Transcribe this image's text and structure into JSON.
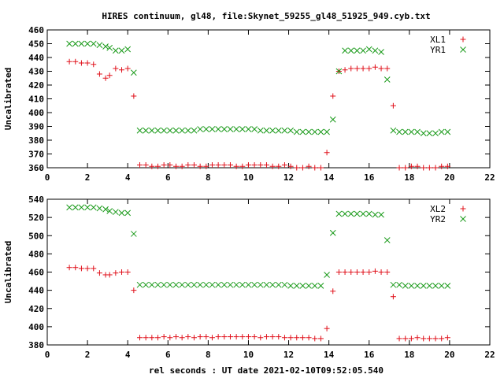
{
  "title": "HIRES continuum, gl48, file:Skynet_59255_gl48_51925_949.cyb.txt",
  "xlabel": "rel seconds : UT date 2021-02-10T09:52:05.540",
  "colors": {
    "red": "#e0101a",
    "green": "#1a9a1a"
  },
  "chart_data": [
    {
      "type": "scatter",
      "ylabel": "Uncalibrated",
      "xlim": [
        0,
        22
      ],
      "ylim": [
        360,
        460
      ],
      "xticks": [
        "0",
        "2",
        "4",
        "6",
        "8",
        "10",
        "12",
        "14",
        "16",
        "18",
        "20",
        "22"
      ],
      "yticks": [
        "360",
        "370",
        "380",
        "390",
        "400",
        "410",
        "420",
        "430",
        "440",
        "450",
        "460"
      ],
      "legend_position": "top-right",
      "series": [
        {
          "name": "XL1",
          "marker": "plus",
          "color": "#e0101a",
          "x": [
            1.1,
            1.4,
            1.7,
            2.0,
            2.3,
            2.6,
            2.9,
            3.1,
            3.4,
            3.7,
            4.0,
            4.3,
            4.6,
            4.9,
            5.2,
            5.5,
            5.8,
            6.1,
            6.4,
            6.7,
            7.0,
            7.3,
            7.6,
            7.9,
            8.2,
            8.5,
            8.8,
            9.1,
            9.4,
            9.7,
            10.0,
            10.3,
            10.6,
            10.9,
            11.2,
            11.5,
            11.8,
            12.1,
            12.4,
            12.7,
            13.0,
            13.3,
            13.6,
            13.9,
            14.2,
            14.5,
            14.8,
            15.1,
            15.4,
            15.7,
            16.0,
            16.3,
            16.6,
            16.9,
            17.2,
            17.5,
            17.8,
            18.1,
            18.4,
            18.7,
            19.0,
            19.3,
            19.6,
            19.9
          ],
          "y": [
            437,
            437,
            436,
            436,
            435,
            428,
            425,
            427,
            432,
            431,
            432,
            412,
            362,
            362,
            361,
            361,
            362,
            362,
            361,
            361,
            362,
            362,
            361,
            361,
            362,
            362,
            362,
            362,
            361,
            361,
            362,
            362,
            362,
            362,
            361,
            361,
            362,
            361,
            360,
            360,
            361,
            360,
            360,
            371,
            412,
            430,
            431,
            432,
            432,
            432,
            432,
            433,
            432,
            432,
            405,
            360,
            360,
            361,
            361,
            360,
            360,
            360,
            361,
            361
          ]
        },
        {
          "name": "YR1",
          "marker": "x",
          "color": "#1a9a1a",
          "x": [
            1.1,
            1.4,
            1.7,
            2.0,
            2.3,
            2.6,
            2.9,
            3.1,
            3.4,
            3.7,
            4.0,
            4.3,
            4.6,
            4.9,
            5.2,
            5.5,
            5.8,
            6.1,
            6.4,
            6.7,
            7.0,
            7.3,
            7.6,
            7.9,
            8.2,
            8.5,
            8.8,
            9.1,
            9.4,
            9.7,
            10.0,
            10.3,
            10.6,
            10.9,
            11.2,
            11.5,
            11.8,
            12.1,
            12.4,
            12.7,
            13.0,
            13.3,
            13.6,
            13.9,
            14.2,
            14.5,
            14.8,
            15.1,
            15.4,
            15.7,
            16.0,
            16.3,
            16.6,
            16.9,
            17.2,
            17.5,
            17.8,
            18.1,
            18.4,
            18.7,
            19.0,
            19.3,
            19.6,
            19.9
          ],
          "y": [
            450,
            450,
            450,
            450,
            450,
            449,
            448,
            447,
            445,
            445,
            446,
            429,
            387,
            387,
            387,
            387,
            387,
            387,
            387,
            387,
            387,
            387,
            388,
            388,
            388,
            388,
            388,
            388,
            388,
            388,
            388,
            388,
            387,
            387,
            387,
            387,
            387,
            387,
            386,
            386,
            386,
            386,
            386,
            386,
            395,
            430,
            445,
            445,
            445,
            445,
            446,
            445,
            444,
            424,
            387,
            386,
            386,
            386,
            386,
            385,
            385,
            385,
            386,
            386
          ]
        }
      ]
    },
    {
      "type": "scatter",
      "ylabel": "Uncalibrated",
      "xlim": [
        0,
        22
      ],
      "ylim": [
        380,
        540
      ],
      "xticks": [
        "0",
        "2",
        "4",
        "6",
        "8",
        "10",
        "12",
        "14",
        "16",
        "18",
        "20",
        "22"
      ],
      "yticks": [
        "380",
        "400",
        "420",
        "440",
        "460",
        "480",
        "500",
        "520",
        "540"
      ],
      "legend_position": "top-right",
      "series": [
        {
          "name": "XL2",
          "marker": "plus",
          "color": "#e0101a",
          "x": [
            1.1,
            1.4,
            1.7,
            2.0,
            2.3,
            2.6,
            2.9,
            3.1,
            3.4,
            3.7,
            4.0,
            4.3,
            4.6,
            4.9,
            5.2,
            5.5,
            5.8,
            6.1,
            6.4,
            6.7,
            7.0,
            7.3,
            7.6,
            7.9,
            8.2,
            8.5,
            8.8,
            9.1,
            9.4,
            9.7,
            10.0,
            10.3,
            10.6,
            10.9,
            11.2,
            11.5,
            11.8,
            12.1,
            12.4,
            12.7,
            13.0,
            13.3,
            13.6,
            13.9,
            14.2,
            14.5,
            14.8,
            15.1,
            15.4,
            15.7,
            16.0,
            16.3,
            16.6,
            16.9,
            17.2,
            17.5,
            17.8,
            18.1,
            18.4,
            18.7,
            19.0,
            19.3,
            19.6,
            19.9
          ],
          "y": [
            465,
            465,
            464,
            464,
            464,
            459,
            457,
            457,
            459,
            460,
            460,
            440,
            388,
            388,
            388,
            388,
            389,
            388,
            389,
            388,
            389,
            388,
            389,
            389,
            388,
            389,
            389,
            389,
            389,
            389,
            389,
            389,
            388,
            389,
            389,
            389,
            388,
            388,
            388,
            388,
            388,
            387,
            387,
            398,
            439,
            460,
            460,
            460,
            460,
            460,
            460,
            461,
            460,
            460,
            433,
            387,
            387,
            387,
            388,
            387,
            387,
            387,
            387,
            388
          ]
        },
        {
          "name": "YR2",
          "marker": "x",
          "color": "#1a9a1a",
          "x": [
            1.1,
            1.4,
            1.7,
            2.0,
            2.3,
            2.6,
            2.9,
            3.1,
            3.4,
            3.7,
            4.0,
            4.3,
            4.6,
            4.9,
            5.2,
            5.5,
            5.8,
            6.1,
            6.4,
            6.7,
            7.0,
            7.3,
            7.6,
            7.9,
            8.2,
            8.5,
            8.8,
            9.1,
            9.4,
            9.7,
            10.0,
            10.3,
            10.6,
            10.9,
            11.2,
            11.5,
            11.8,
            12.1,
            12.4,
            12.7,
            13.0,
            13.3,
            13.6,
            13.9,
            14.2,
            14.5,
            14.8,
            15.1,
            15.4,
            15.7,
            16.0,
            16.3,
            16.6,
            16.9,
            17.2,
            17.5,
            17.8,
            18.1,
            18.4,
            18.7,
            19.0,
            19.3,
            19.6,
            19.9
          ],
          "y": [
            531,
            531,
            531,
            531,
            531,
            530,
            529,
            527,
            526,
            525,
            525,
            502,
            446,
            446,
            446,
            446,
            446,
            446,
            446,
            446,
            446,
            446,
            446,
            446,
            446,
            446,
            446,
            446,
            446,
            446,
            446,
            446,
            446,
            446,
            446,
            446,
            446,
            445,
            445,
            445,
            445,
            445,
            445,
            457,
            503,
            524,
            524,
            524,
            524,
            524,
            524,
            523,
            523,
            495,
            446,
            446,
            445,
            445,
            445,
            445,
            445,
            445,
            445,
            445
          ]
        }
      ]
    }
  ]
}
